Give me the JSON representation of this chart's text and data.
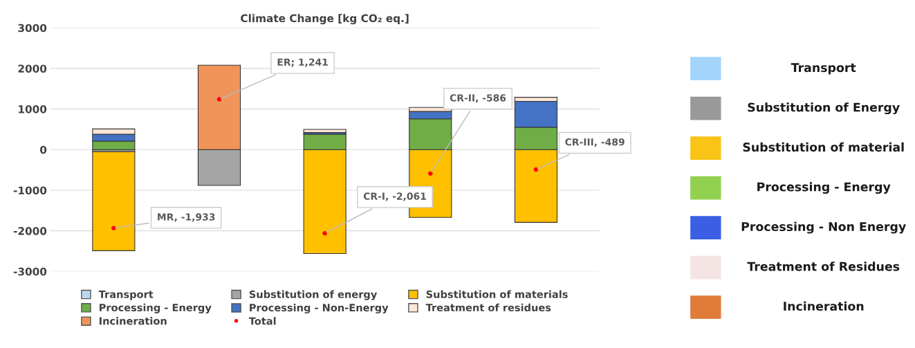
{
  "chart_data": [
    {
      "type": "bar",
      "stacked": true,
      "title": "Climate Change [kg CO₂ eq.]",
      "categories": [
        null,
        null,
        null,
        null,
        null
      ],
      "series": [
        {
          "name": "Transport",
          "color": "#bdd7ee",
          "values": [
            null,
            0,
            null,
            0,
            0
          ]
        },
        {
          "name": "Substitution of energy",
          "color": "#a5a5a5",
          "values": [
            -50,
            -880,
            0,
            0,
            0
          ]
        },
        {
          "name": "Substitution of materials",
          "color": "#ffc000",
          "values": [
            -2440,
            0,
            -2560,
            -1670,
            -1790
          ]
        },
        {
          "name": "Processing - Energy",
          "color": "#70ad47",
          "values": [
            210,
            0,
            380,
            760,
            550
          ]
        },
        {
          "name": "Processing - Non-Energy",
          "color": "#4472c4",
          "values": [
            170,
            0,
            40,
            180,
            640
          ]
        },
        {
          "name": "Treatment of residues",
          "color": "#fbe5d6",
          "values": [
            130,
            0,
            80,
            100,
            100
          ]
        },
        {
          "name": "Incineration",
          "color": "#f0945a",
          "values": [
            0,
            2080,
            0,
            0,
            0
          ]
        },
        {
          "name": "Total",
          "type": "scatter",
          "color": "#ff0000",
          "marker": "circle",
          "values": [
            -1933,
            1241,
            -2061,
            -586,
            -489
          ],
          "value_labels": [
            "MR, -1,933",
            "ER; 1,241",
            "CR-I, -2,061",
            "CR-II, -586",
            "CR-III, -489"
          ]
        }
      ],
      "ylim": [
        -3000,
        3000
      ],
      "yticks": [
        -3000,
        -2000,
        -1000,
        0,
        1000,
        2000,
        3000
      ],
      "grid": "y",
      "legend": "bottom"
    },
    {
      "type": "other",
      "categories": [
        "Transport",
        "Substitution of Energy",
        "Substitution of material",
        "Processing - Energy",
        "Processing - Non Energy",
        "Treatment of Residues",
        "Incineration"
      ],
      "colors": [
        "#a3d4fc",
        "#999999",
        "#f9c416",
        "#92d050",
        "#3a5fe5",
        "#f5e4e4",
        "#e07b39"
      ]
    }
  ]
}
